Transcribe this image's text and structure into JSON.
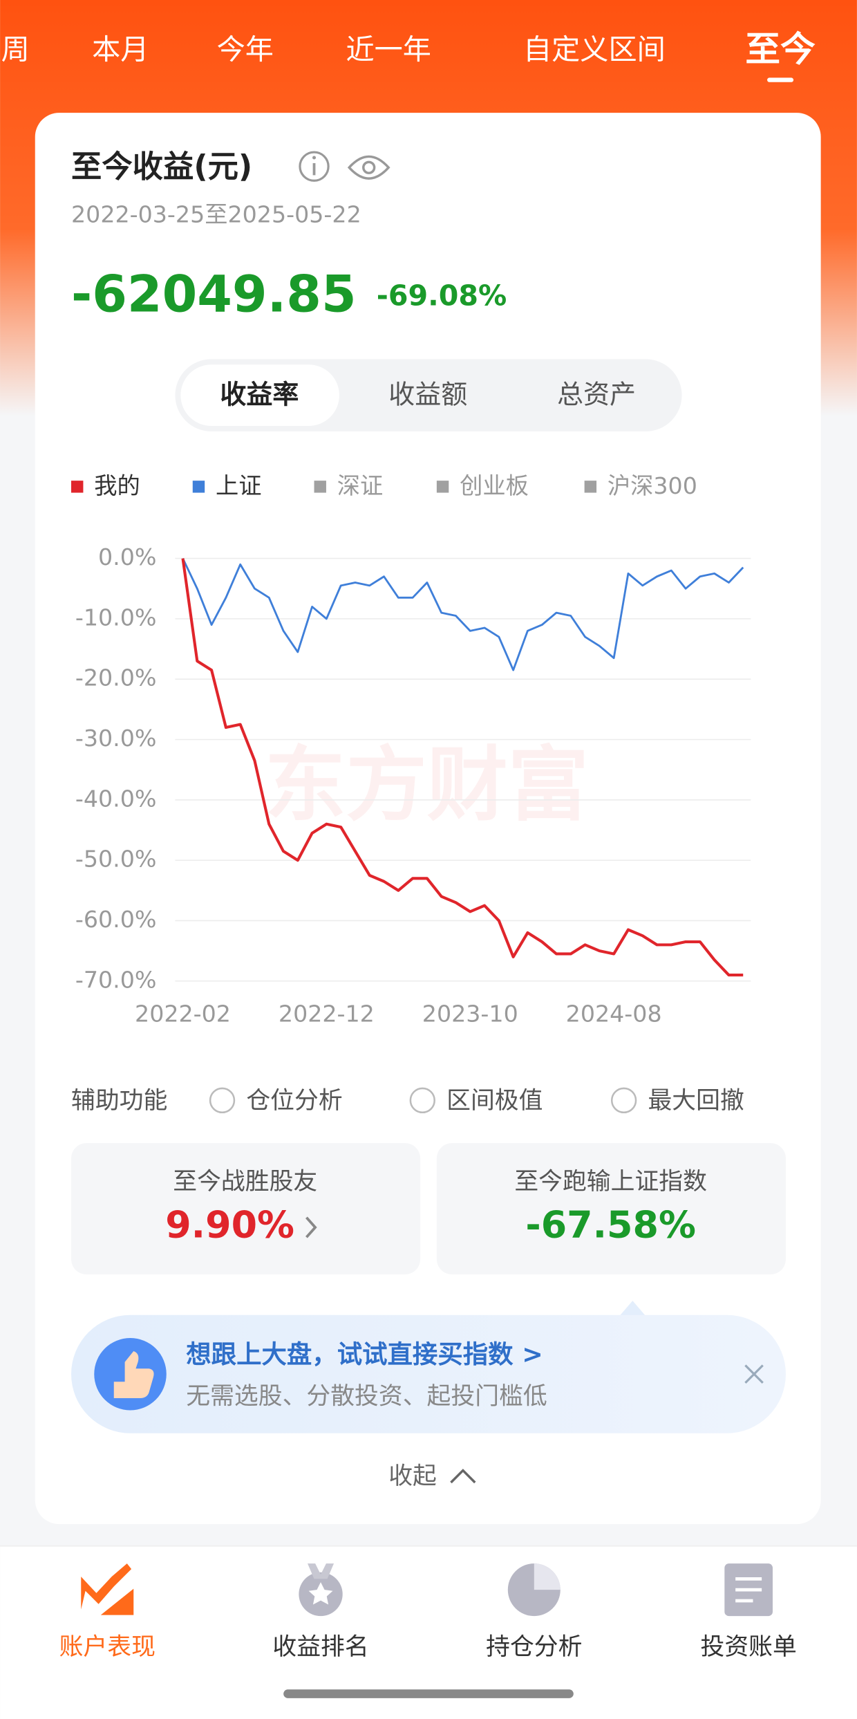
{
  "tabs": [
    "周",
    "本月",
    "今年",
    "近一年",
    "自定义区间",
    "至今"
  ],
  "active_tab": 5,
  "card": {
    "title": "至今收益(元)",
    "date_range": "2022-03-25至2025-05-22",
    "amount": "-62049.85",
    "rate": "-69.08%"
  },
  "segments": [
    "收益率",
    "收益额",
    "总资产"
  ],
  "active_segment": 0,
  "chart_data": {
    "type": "line",
    "watermark": "东方财富",
    "categories": [
      "2022-02",
      null,
      null,
      null,
      null,
      null,
      null,
      null,
      null,
      null,
      "2022-12",
      null,
      null,
      null,
      null,
      null,
      null,
      null,
      null,
      null,
      "2023-10",
      null,
      null,
      null,
      null,
      null,
      null,
      null,
      null,
      null,
      "2024-08",
      null,
      null,
      null,
      null,
      null,
      null,
      null,
      null,
      null
    ],
    "series": [
      {
        "name": "我的",
        "color": "#e0252b",
        "values": [
          0,
          -17,
          -18.5,
          -28,
          -27.5,
          -33.5,
          -44,
          -48.5,
          -50,
          -45.5,
          -44,
          -44.5,
          -48.5,
          -52.5,
          -53.5,
          -55,
          -53,
          -53,
          -56,
          -57,
          -58.5,
          -57.5,
          -60,
          -66,
          -62,
          -63.5,
          -65.5,
          -65.5,
          -64,
          -65,
          -65.5,
          -61.5,
          -62.5,
          -64,
          -64,
          -63.5,
          -63.5,
          -66.5,
          -69,
          -69
        ]
      },
      {
        "name": "上证",
        "color": "#3f7fd9",
        "values": [
          0,
          -5,
          -11,
          -6.5,
          -1,
          -5,
          -6.5,
          -12,
          -15.5,
          -8,
          -10,
          -4.5,
          -4,
          -4.5,
          -3,
          -6.5,
          -6.5,
          -4,
          -9,
          -9.5,
          -12,
          -11.5,
          -13,
          -18.5,
          -12,
          -11,
          -9,
          -9.5,
          -13,
          -14.5,
          -16.5,
          -2.5,
          -4.5,
          -3,
          -2,
          -5,
          -3,
          -2.5,
          -4,
          -1.5
        ]
      }
    ],
    "inactive_series": [
      {
        "name": "深证",
        "color": "#a0a0a0"
      },
      {
        "name": "创业板",
        "color": "#a0a0a0"
      },
      {
        "name": "沪深300",
        "color": "#a0a0a0"
      }
    ],
    "ylim": [
      -70,
      0
    ],
    "yticks": [
      {
        "value": 0,
        "label": "0.0%"
      },
      {
        "value": -10,
        "label": "-10.0%"
      },
      {
        "value": -20,
        "label": "-20.0%"
      },
      {
        "value": -30,
        "label": "-30.0%"
      },
      {
        "value": -40,
        "label": "-40.0%"
      },
      {
        "value": -50,
        "label": "-50.0%"
      },
      {
        "value": -60,
        "label": "-60.0%"
      },
      {
        "value": -70,
        "label": "-70.0%"
      }
    ],
    "grid": true
  },
  "aux": {
    "label": "辅助功能",
    "options": [
      "仓位分析",
      "区间极值",
      "最大回撤"
    ]
  },
  "stats": [
    {
      "label": "至今战胜股友",
      "value": "9.90%"
    },
    {
      "label": "至今跑输上证指数",
      "value": "-67.58%"
    }
  ],
  "promo": {
    "title": "想跟上大盘，试试直接买指数 >",
    "subtitle": "无需选股、分散投资、起投门槛低"
  },
  "collapse": "收起",
  "nav": [
    "账户表现",
    "收益排名",
    "持仓分析",
    "投资账单"
  ],
  "active_nav": 0
}
